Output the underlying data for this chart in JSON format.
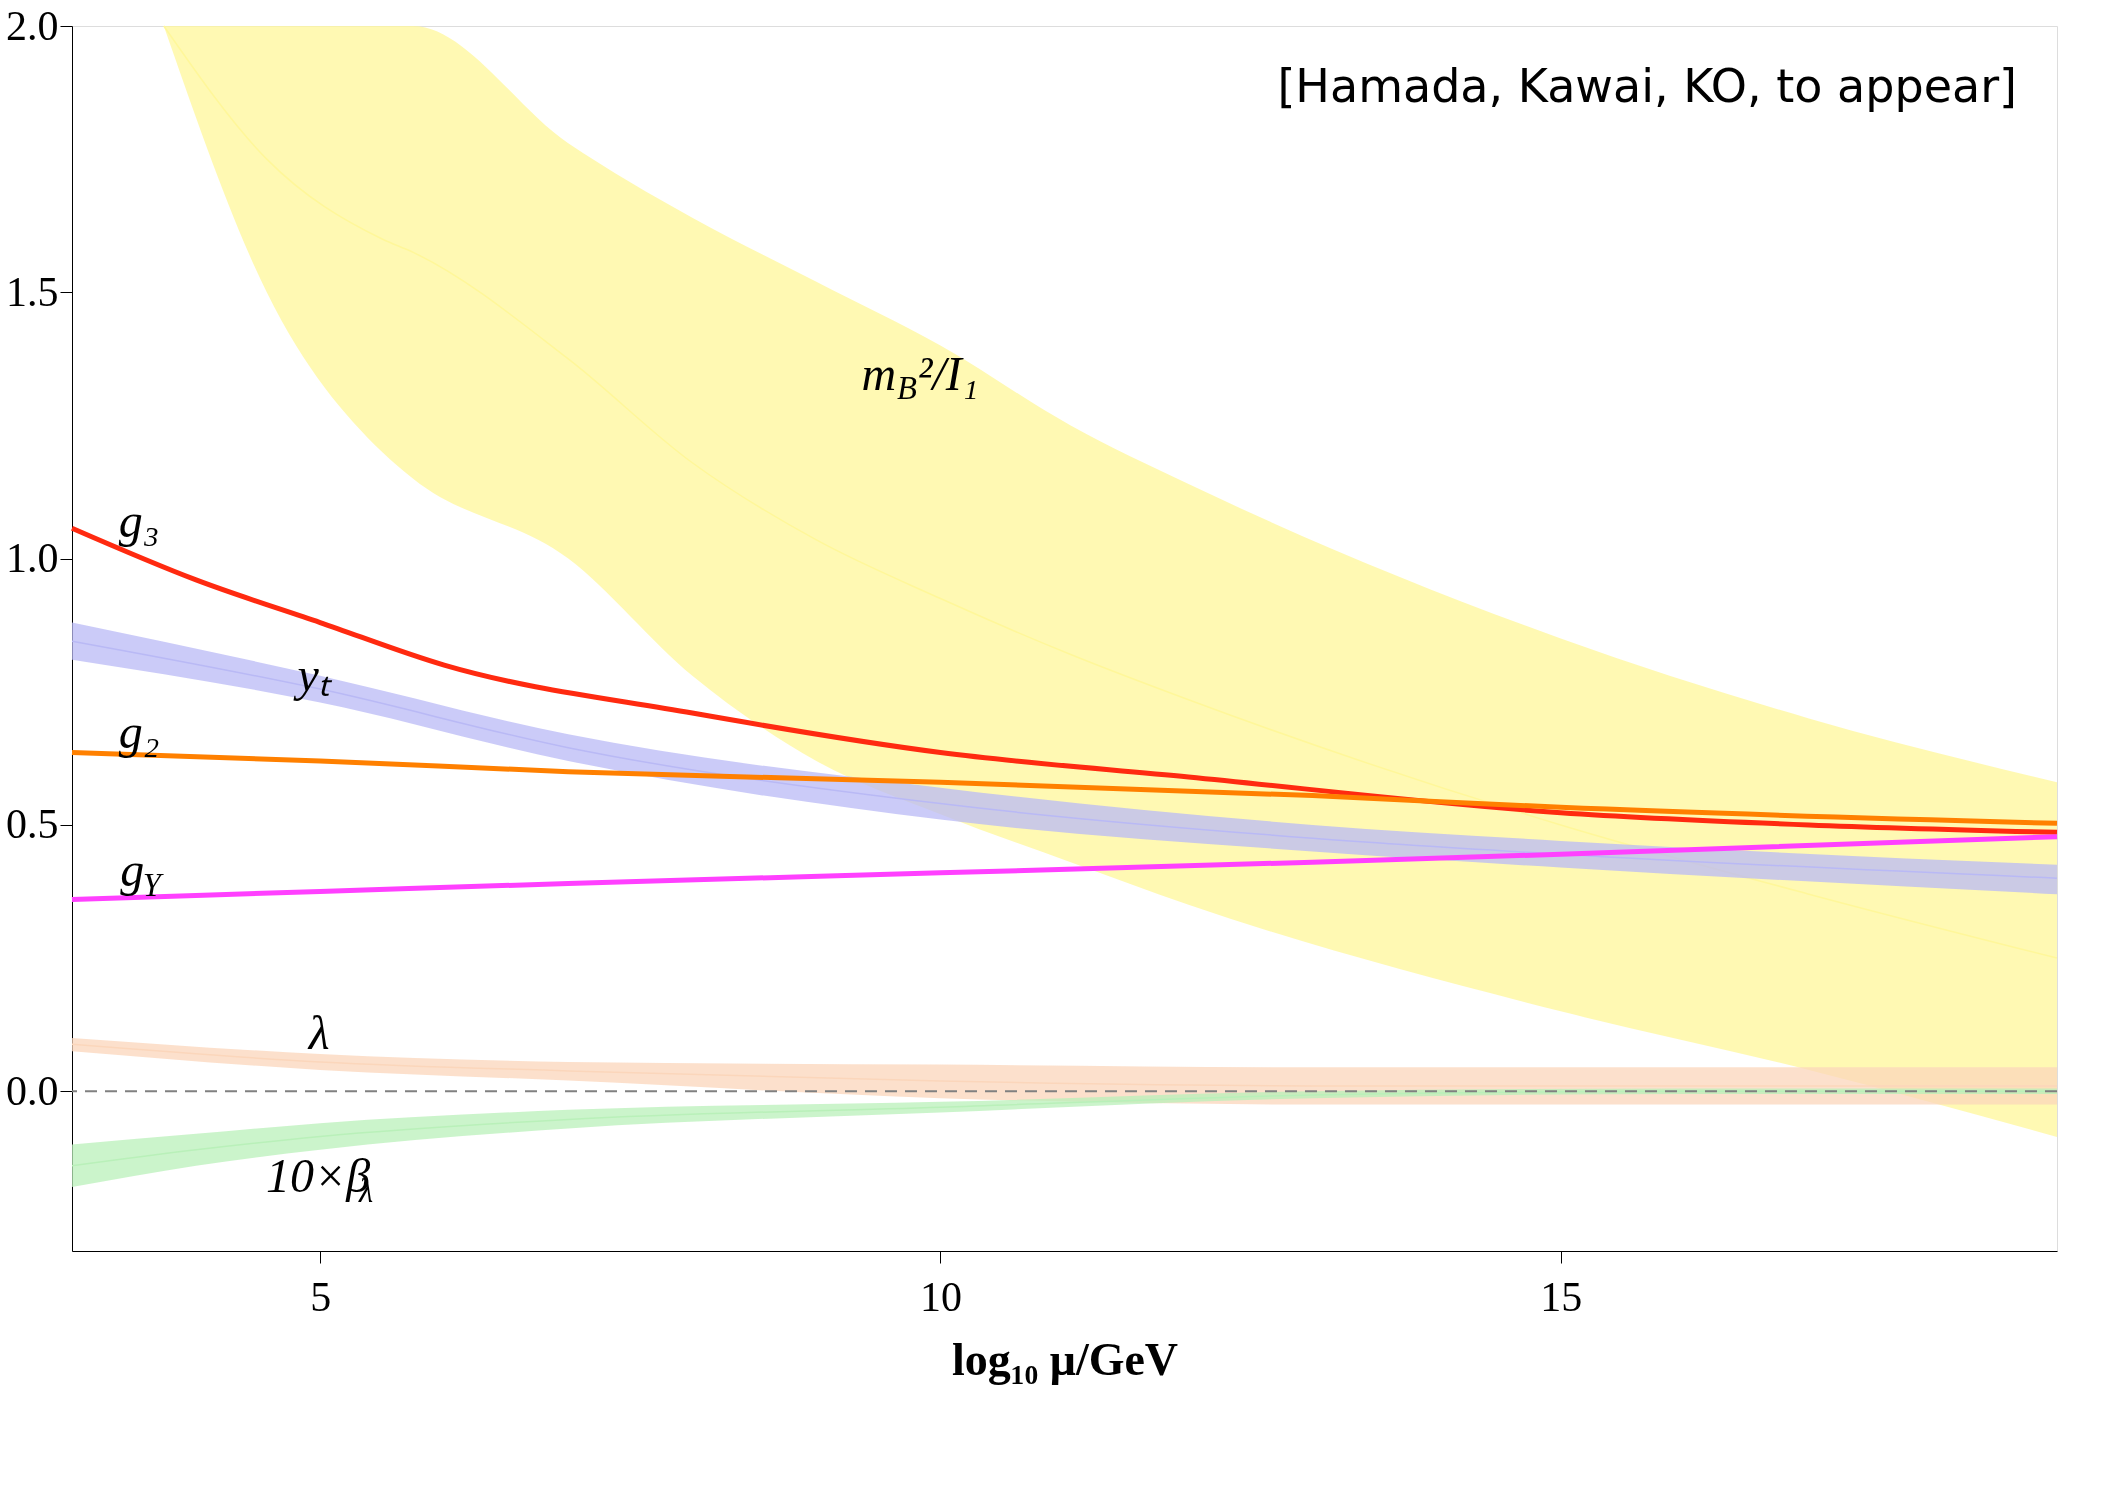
{
  "chart_data": {
    "type": "line",
    "xlabel": "log₁₀ μ/GeV",
    "xlim": [
      3,
      19
    ],
    "ylim": [
      -0.3,
      2.0
    ],
    "xticks": [
      5,
      10,
      15
    ],
    "yticks": [
      {
        "value": 0,
        "label": "0.0"
      },
      {
        "value": 0.5,
        "label": "0.5"
      },
      {
        "value": 1,
        "label": "1.0"
      },
      {
        "value": 1.5,
        "label": "1.5"
      },
      {
        "value": 2,
        "label": "2.0"
      }
    ],
    "grid": false,
    "series": [
      {
        "name": "m$_{B}$²/I₁",
        "color": "#fff79a",
        "x": [
          3.74,
          4.57,
          5.5,
          5.75,
          7,
          8,
          9,
          10,
          11.05,
          12,
          15,
          17,
          19
        ],
        "values": [
          2.0,
          1.75,
          1.6,
          1.575,
          1.375,
          1.18,
          1.035,
          0.925,
          0.82,
          0.735,
          0.5,
          0.37,
          0.25
        ],
        "lower": [
          2.0,
          1.5,
          1.2,
          1.15,
          1.0,
          0.78,
          0.62,
          0.52,
          0.43,
          0.35,
          0.15,
          0.04,
          -0.086
        ],
        "upper": [
          2.0,
          2.0,
          2.0,
          2.0,
          1.78,
          1.64,
          1.52,
          1.4,
          1.25,
          1.14,
          0.85,
          0.7,
          0.58
        ]
      },
      {
        "name": "yₜ",
        "color": "#b9b9f5",
        "x": [
          3,
          5,
          7,
          10,
          13,
          15,
          19
        ],
        "values": [
          0.845,
          0.755,
          0.645,
          0.54,
          0.475,
          0.445,
          0.4
        ],
        "lower": [
          0.81,
          0.73,
          0.62,
          0.51,
          0.45,
          0.42,
          0.37
        ],
        "upper": [
          0.88,
          0.78,
          0.67,
          0.57,
          0.5,
          0.47,
          0.425
        ]
      },
      {
        "name": "λ",
        "color": "#fbd6bb",
        "x": [
          3,
          5,
          7,
          10,
          13,
          15,
          19
        ],
        "values": [
          0.088,
          0.055,
          0.038,
          0.019,
          0.01,
          0.01,
          0.01
        ],
        "lower": [
          0.075,
          0.04,
          0.02,
          -0.013,
          -0.025,
          -0.025,
          -0.025
        ],
        "upper": [
          0.1,
          0.07,
          0.055,
          0.05,
          0.045,
          0.045,
          0.045
        ]
      },
      {
        "name": "10×β$_{λ}$",
        "color": "#b9f0b9",
        "x": [
          3,
          4,
          5,
          7,
          10,
          13,
          16,
          19
        ],
        "values": [
          -0.14,
          -0.11,
          -0.085,
          -0.053,
          -0.03,
          -0.007,
          0,
          0
        ],
        "lower": [
          -0.18,
          -0.14,
          -0.11,
          -0.07,
          -0.04,
          -0.013,
          -0.005,
          -0.005
        ],
        "upper": [
          -0.1,
          -0.08,
          -0.06,
          -0.035,
          -0.02,
          0,
          0.005,
          0.005
        ]
      },
      {
        "name": "g₃",
        "color": "#ff2a10",
        "x": [
          3,
          4,
          5,
          6,
          8,
          10,
          12,
          15,
          17,
          19
        ],
        "values": [
          1.057,
          0.96,
          0.88,
          0.8,
          0.71,
          0.636,
          0.59,
          0.523,
          0.5,
          0.486
        ]
      },
      {
        "name": "g₂",
        "color": "#ff8000",
        "x": [
          3,
          5,
          7,
          10,
          13,
          15,
          19
        ],
        "values": [
          0.636,
          0.62,
          0.6,
          0.58,
          0.555,
          0.533,
          0.503
        ]
      },
      {
        "name": "g$_{Y}$",
        "color": "#ff40ff",
        "x": [
          3,
          5,
          7,
          10,
          13,
          15,
          19
        ],
        "values": [
          0.36,
          0.375,
          0.39,
          0.41,
          0.43,
          0.445,
          0.478
        ]
      }
    ],
    "ref_lines": [
      {
        "axis": "y",
        "value": 0,
        "color": "#808080",
        "line_style": "dashed"
      }
    ],
    "annotations": [
      "[Hamada, Kawai, KO, to appear]"
    ]
  }
}
